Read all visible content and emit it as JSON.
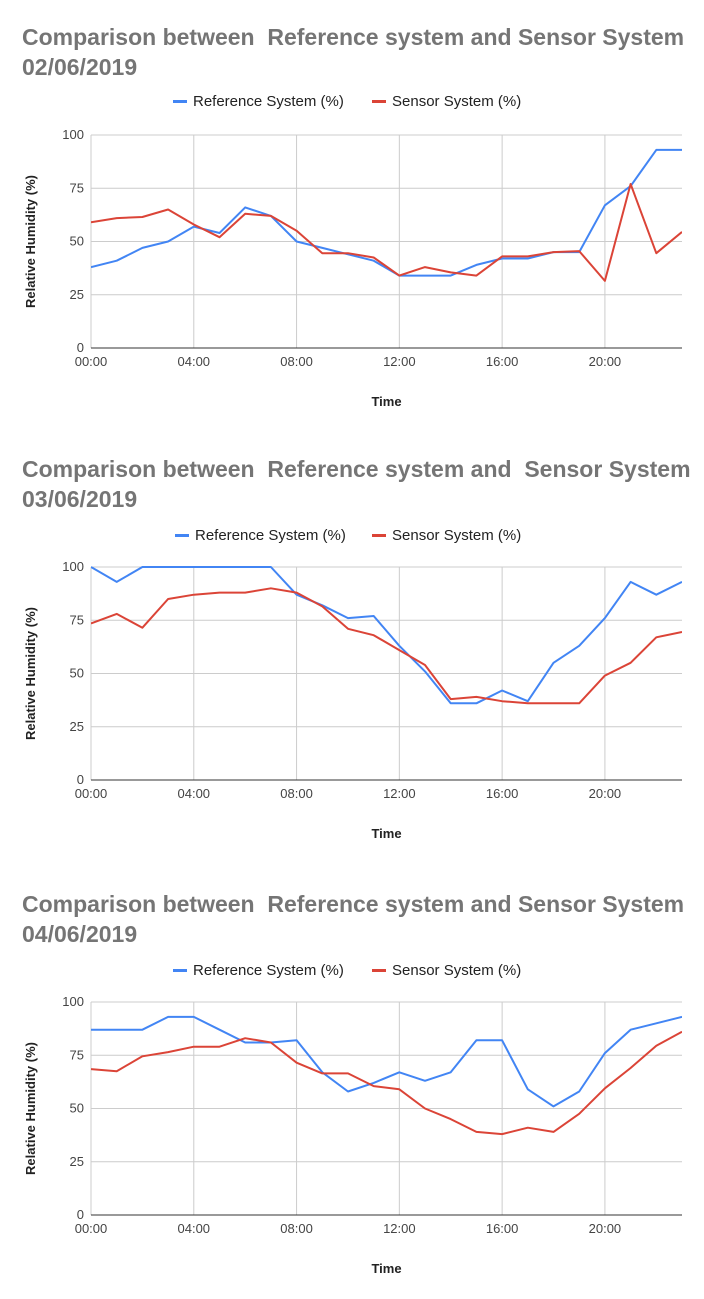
{
  "colors": {
    "reference": "#4285f4",
    "sensor": "#db4437",
    "grid": "#cccccc",
    "axis": "#333333"
  },
  "chart_data": [
    {
      "type": "line",
      "title": "Comparison between  Reference system and Sensor System 02/06/2019",
      "xlabel": "Time",
      "ylabel": "Relative Humidity (%)",
      "xlim": [
        0,
        23
      ],
      "ylim": [
        0,
        100
      ],
      "x_ticks": [
        "00:00",
        "04:00",
        "08:00",
        "12:00",
        "16:00",
        "20:00"
      ],
      "y_ticks": [
        "0",
        "25",
        "50",
        "75",
        "100"
      ],
      "legend_position": "top",
      "grid": true,
      "x": [
        0,
        1,
        2,
        3,
        4,
        5,
        6,
        7,
        8,
        9,
        10,
        11,
        12,
        13,
        14,
        15,
        16,
        17,
        18,
        19,
        20,
        21,
        22,
        23
      ],
      "series": [
        {
          "name": "Reference System (%)",
          "values": [
            38,
            41,
            47,
            50,
            57,
            54,
            66,
            62,
            50,
            47,
            44,
            41,
            34,
            34,
            34,
            39,
            42,
            42,
            45,
            45,
            67,
            76,
            93,
            93
          ]
        },
        {
          "name": "Sensor System (%)",
          "values": [
            59,
            61,
            61.5,
            65,
            58,
            52,
            63,
            62,
            55,
            44.5,
            44.5,
            42.5,
            34,
            38,
            35.5,
            34,
            43,
            43,
            45,
            45.5,
            31.5,
            77,
            44.5,
            54.5
          ]
        }
      ]
    },
    {
      "type": "line",
      "title": "Comparison between  Reference system and  Sensor System 03/06/2019",
      "xlabel": "Time",
      "ylabel": "Relative Humidity (%)",
      "xlim": [
        0,
        23
      ],
      "ylim": [
        0,
        100
      ],
      "x_ticks": [
        "00:00",
        "04:00",
        "08:00",
        "12:00",
        "16:00",
        "20:00"
      ],
      "y_ticks": [
        "0",
        "25",
        "50",
        "75",
        "100"
      ],
      "legend_position": "top",
      "grid": true,
      "x": [
        0,
        1,
        2,
        3,
        4,
        5,
        6,
        7,
        8,
        9,
        10,
        11,
        12,
        13,
        14,
        15,
        16,
        17,
        18,
        19,
        20,
        21,
        22,
        23
      ],
      "series": [
        {
          "name": "Reference System (%)",
          "values": [
            100,
            93,
            100,
            100,
            100,
            100,
            100,
            100,
            87,
            82,
            76,
            77,
            63,
            51,
            36,
            36,
            42,
            37,
            55,
            63,
            76,
            93,
            87,
            93
          ]
        },
        {
          "name": "Sensor System (%)",
          "values": [
            73.5,
            78,
            71.5,
            85,
            87,
            88,
            88,
            90,
            88,
            81.5,
            71,
            68,
            61,
            54,
            38,
            39,
            37,
            36,
            36,
            36,
            49,
            55,
            67,
            69.5
          ]
        }
      ]
    },
    {
      "type": "line",
      "title": "Comparison between  Reference system and Sensor System 04/06/2019",
      "xlabel": "Time",
      "ylabel": "Relative Humidity (%)",
      "xlim": [
        0,
        23
      ],
      "ylim": [
        0,
        100
      ],
      "x_ticks": [
        "00:00",
        "04:00",
        "08:00",
        "12:00",
        "16:00",
        "20:00"
      ],
      "y_ticks": [
        "0",
        "25",
        "50",
        "75",
        "100"
      ],
      "legend_position": "top",
      "grid": true,
      "x": [
        0,
        1,
        2,
        3,
        4,
        5,
        6,
        7,
        8,
        9,
        10,
        11,
        12,
        13,
        14,
        15,
        16,
        17,
        18,
        19,
        20,
        21,
        22,
        23
      ],
      "series": [
        {
          "name": "Reference System (%)",
          "values": [
            87,
            87,
            87,
            93,
            93,
            87,
            81,
            81,
            82,
            67,
            58,
            62,
            67,
            63,
            67,
            82,
            82,
            59,
            51,
            58,
            76,
            87,
            90,
            93
          ]
        },
        {
          "name": "Sensor System (%)",
          "values": [
            68.5,
            67.5,
            74.5,
            76.5,
            79,
            79,
            83,
            81,
            71.5,
            66.5,
            66.5,
            60.5,
            59,
            50,
            45,
            39,
            38,
            41,
            39,
            47.5,
            59.5,
            69,
            79.5,
            86
          ]
        }
      ]
    }
  ]
}
